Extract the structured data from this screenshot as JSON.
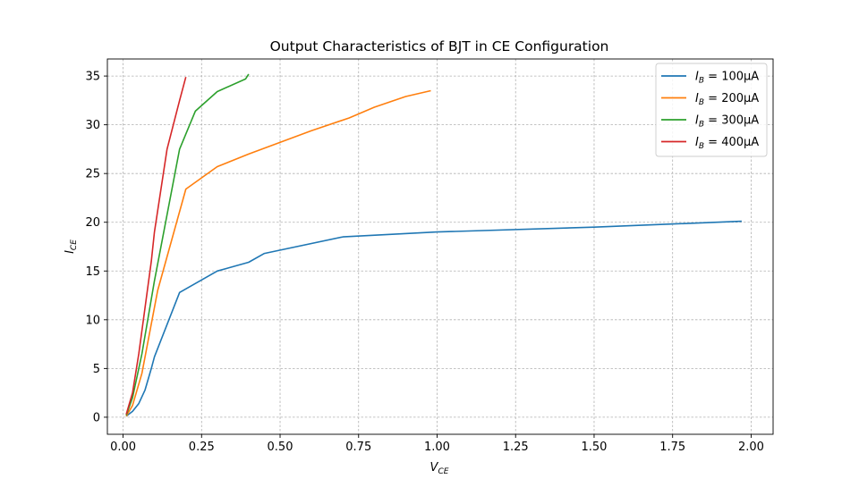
{
  "chart_data": {
    "type": "line",
    "title": "Output Characteristics of BJT in CE Configuration",
    "xlabel": {
      "main": "V",
      "sub": "CE"
    },
    "ylabel": {
      "main": "I",
      "sub": "CE"
    },
    "xlim": [
      -0.05,
      2.07
    ],
    "ylim": [
      -1.75,
      36.75
    ],
    "grid": true,
    "legend_position": "top-right",
    "xticks": [
      0.0,
      0.25,
      0.5,
      0.75,
      1.0,
      1.25,
      1.5,
      1.75,
      2.0
    ],
    "xtick_labels": [
      "0.00",
      "0.25",
      "0.50",
      "0.75",
      "1.00",
      "1.25",
      "1.50",
      "1.75",
      "2.00"
    ],
    "yticks": [
      0,
      5,
      10,
      15,
      20,
      25,
      30,
      35
    ],
    "ytick_labels": [
      "0",
      "5",
      "10",
      "15",
      "20",
      "25",
      "30",
      "35"
    ],
    "series": [
      {
        "name": "I_B = 100μA",
        "legend": {
          "sym": "I",
          "sub": "B",
          "text": " = 100μA"
        },
        "color": "#1f77b4",
        "x": [
          0.01,
          0.03,
          0.05,
          0.07,
          0.09,
          0.1,
          0.18,
          0.3,
          0.4,
          0.45,
          0.7,
          1.0,
          1.5,
          1.97
        ],
        "y": [
          0.1,
          0.6,
          1.4,
          2.8,
          5.0,
          6.2,
          12.8,
          15.0,
          15.9,
          16.8,
          18.5,
          19.0,
          19.5,
          20.1
        ]
      },
      {
        "name": "I_B = 200μA",
        "legend": {
          "sym": "I",
          "sub": "B",
          "text": " = 200μA"
        },
        "color": "#ff7f0e",
        "x": [
          0.01,
          0.03,
          0.06,
          0.11,
          0.2,
          0.3,
          0.4,
          0.6,
          0.72,
          0.8,
          0.9,
          0.98
        ],
        "y": [
          0.1,
          1.2,
          4.5,
          13.0,
          23.4,
          25.7,
          27.0,
          29.4,
          30.7,
          31.8,
          32.9,
          33.5
        ]
      },
      {
        "name": "I_B = 300μA",
        "legend": {
          "sym": "I",
          "sub": "B",
          "text": " = 300μA"
        },
        "color": "#2ca02c",
        "x": [
          0.01,
          0.03,
          0.06,
          0.1,
          0.18,
          0.23,
          0.3,
          0.39,
          0.4
        ],
        "y": [
          0.2,
          2.0,
          6.5,
          14.0,
          27.5,
          31.4,
          33.4,
          34.7,
          35.2
        ]
      },
      {
        "name": "I_B = 400μA",
        "legend": {
          "sym": "I",
          "sub": "B",
          "text": " = 400μA"
        },
        "color": "#d62728",
        "x": [
          0.01,
          0.03,
          0.05,
          0.09,
          0.1,
          0.14,
          0.18,
          0.2
        ],
        "y": [
          0.3,
          2.5,
          6.5,
          16.0,
          19.0,
          27.5,
          32.5,
          34.9
        ]
      }
    ]
  }
}
